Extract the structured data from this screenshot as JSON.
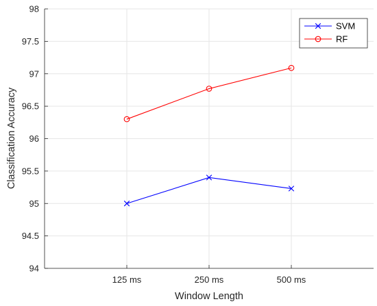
{
  "chart_data": {
    "type": "line",
    "xlabel": "Window Length",
    "ylabel": "Classification Accuracy",
    "categories": [
      "125 ms",
      "250 ms",
      "500 ms"
    ],
    "ylim": [
      94,
      98
    ],
    "xlim": [
      0,
      4
    ],
    "yticks": [
      94,
      94.5,
      95,
      95.5,
      96,
      96.5,
      97,
      97.5,
      98
    ],
    "ytick_labels": [
      "94",
      "94.5",
      "95",
      "95.5",
      "96",
      "96.5",
      "97",
      "97.5",
      "98"
    ],
    "grid": true,
    "legend_position": "top-right",
    "series": [
      {
        "name": "SVM",
        "color": "#0000ff",
        "marker": "x",
        "values": [
          95.0,
          95.4,
          95.23
        ]
      },
      {
        "name": "RF",
        "color": "#ff0000",
        "marker": "o",
        "values": [
          96.3,
          96.77,
          97.09
        ]
      }
    ]
  }
}
